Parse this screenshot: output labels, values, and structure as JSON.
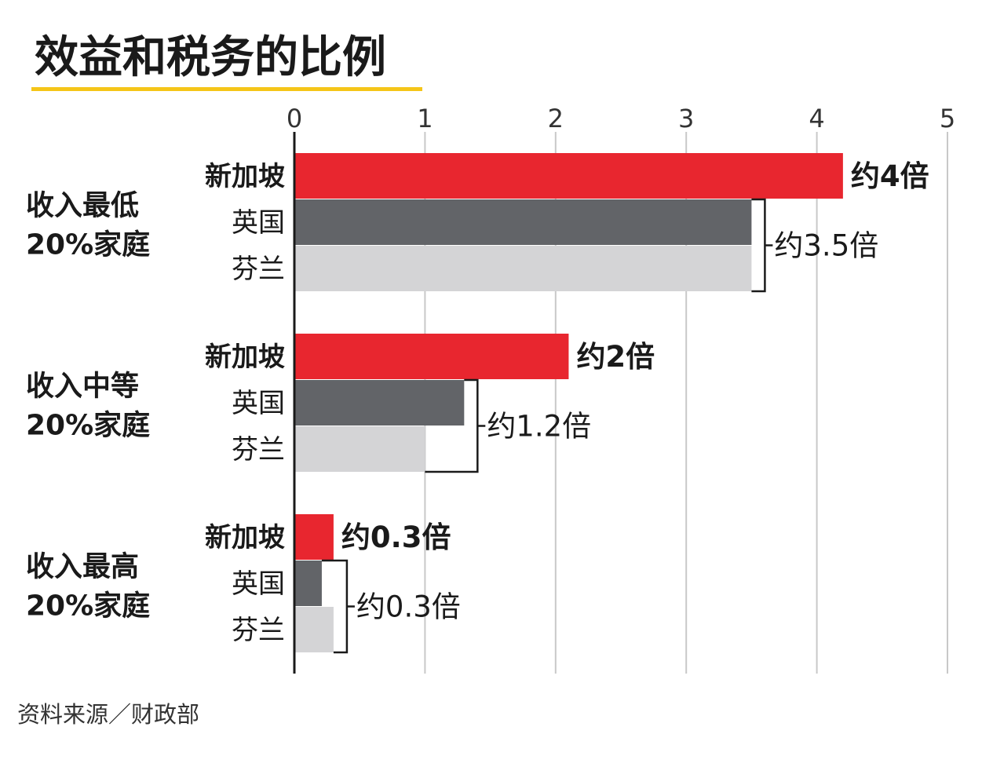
{
  "colors": {
    "singapore": "#e8262f",
    "uk": "#626468",
    "finland": "#d4d4d6",
    "accent_rule": "#f5c518",
    "grid": "#c8c8c8",
    "axis": "#1a1a1a"
  },
  "source": "资料来源／财政部",
  "chart_data": {
    "type": "bar",
    "orientation": "horizontal",
    "title": "效益和税务的比例",
    "xlim": [
      0,
      5
    ],
    "xticks": [
      "0",
      "1",
      "2",
      "3",
      "4",
      "5"
    ],
    "grid": true,
    "groups": [
      {
        "label_line1": "收入最低",
        "label_line2": "20%家庭",
        "bars": [
          {
            "country": "新加坡",
            "series": "singapore",
            "value": 4.2
          },
          {
            "country": "英国",
            "series": "uk",
            "value": 3.5
          },
          {
            "country": "芬兰",
            "series": "finland",
            "value": 3.5
          }
        ],
        "annotations": {
          "singapore": "约4倍",
          "others": "约3.5倍"
        }
      },
      {
        "label_line1": "收入中等",
        "label_line2": "20%家庭",
        "bars": [
          {
            "country": "新加坡",
            "series": "singapore",
            "value": 2.1
          },
          {
            "country": "英国",
            "series": "uk",
            "value": 1.3
          },
          {
            "country": "芬兰",
            "series": "finland",
            "value": 1.0
          }
        ],
        "annotations": {
          "singapore": "约2倍",
          "others": "约1.2倍"
        }
      },
      {
        "label_line1": "收入最高",
        "label_line2": "20%家庭",
        "bars": [
          {
            "country": "新加坡",
            "series": "singapore",
            "value": 0.3
          },
          {
            "country": "英国",
            "series": "uk",
            "value": 0.21
          },
          {
            "country": "芬兰",
            "series": "finland",
            "value": 0.3
          }
        ],
        "annotations": {
          "singapore": "约0.3倍",
          "others": "约0.3倍"
        }
      }
    ]
  }
}
